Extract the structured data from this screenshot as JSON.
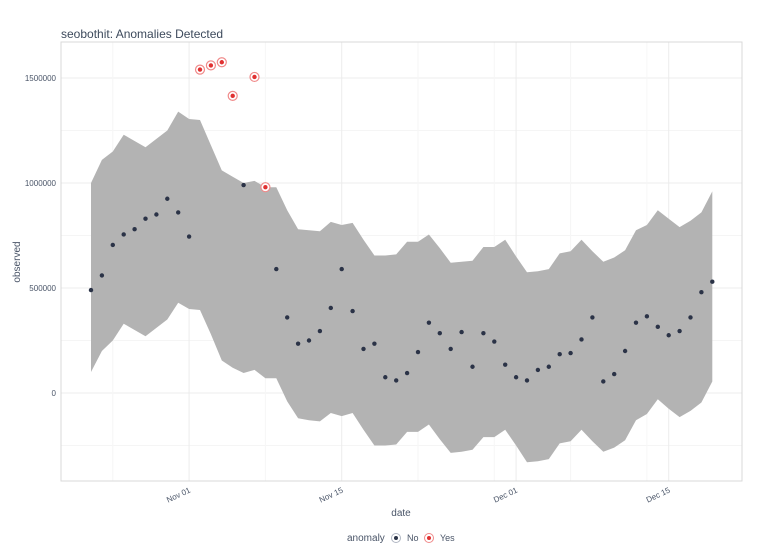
{
  "chart_data": {
    "type": "scatter",
    "title": "seobothit: Anomalies Detected",
    "xlabel": "date",
    "ylabel": "observed",
    "ylim": [
      -420000,
      1660000
    ],
    "yticks": [
      0,
      500000,
      1000000,
      1500000
    ],
    "ytick_labels": [
      "0",
      "500000",
      "1000000",
      "1500000"
    ],
    "xticks": [
      "Nov 01",
      "Nov 15",
      "Dec 01",
      "Dec 15"
    ],
    "grid": true,
    "legend": {
      "title": "anomaly",
      "placement": "bottom",
      "entries": [
        "No",
        "Yes"
      ]
    },
    "colors": {
      "normal": "#2b3347",
      "anomaly": "#e03131",
      "band": "#b3b3b3"
    },
    "dates": [
      "Oct 23",
      "Oct 24",
      "Oct 25",
      "Oct 26",
      "Oct 27",
      "Oct 28",
      "Oct 29",
      "Oct 30",
      "Oct 31",
      "Nov 01",
      "Nov 02",
      "Nov 03",
      "Nov 04",
      "Nov 05",
      "Nov 06",
      "Nov 07",
      "Nov 08",
      "Nov 09",
      "Nov 10",
      "Nov 11",
      "Nov 12",
      "Nov 13",
      "Nov 14",
      "Nov 15",
      "Nov 16",
      "Nov 17",
      "Nov 18",
      "Nov 19",
      "Nov 20",
      "Nov 21",
      "Nov 22",
      "Nov 23",
      "Nov 24",
      "Nov 25",
      "Nov 26",
      "Nov 27",
      "Nov 28",
      "Nov 29",
      "Nov 30",
      "Dec 01",
      "Dec 02",
      "Dec 03",
      "Dec 04",
      "Dec 05",
      "Dec 06",
      "Dec 07",
      "Dec 08",
      "Dec 09",
      "Dec 10",
      "Dec 11",
      "Dec 12",
      "Dec 13",
      "Dec 14",
      "Dec 15",
      "Dec 16",
      "Dec 17",
      "Dec 18",
      "Dec 19"
    ],
    "observed": [
      490000,
      560000,
      705000,
      755000,
      780000,
      830000,
      850000,
      925000,
      860000,
      745000,
      1540000,
      1560000,
      1575000,
      1415000,
      990000,
      1505000,
      980000,
      590000,
      360000,
      235000,
      250000,
      295000,
      405000,
      590000,
      390000,
      210000,
      235000,
      75000,
      60000,
      95000,
      195000,
      335000,
      285000,
      210000,
      290000,
      125000,
      285000,
      245000,
      135000,
      75000,
      60000,
      110000,
      125000,
      185000,
      190000,
      255000,
      360000,
      55000,
      90000,
      200000,
      335000,
      365000,
      315000,
      275000,
      295000,
      360000,
      480000,
      530000
    ],
    "anomaly": [
      "No",
      "No",
      "No",
      "No",
      "No",
      "No",
      "No",
      "No",
      "No",
      "No",
      "Yes",
      "Yes",
      "Yes",
      "Yes",
      "No",
      "Yes",
      "Yes",
      "No",
      "No",
      "No",
      "No",
      "No",
      "No",
      "No",
      "No",
      "No",
      "No",
      "No",
      "No",
      "No",
      "No",
      "No",
      "No",
      "No",
      "No",
      "No",
      "No",
      "No",
      "No",
      "No",
      "No",
      "No",
      "No",
      "No",
      "No",
      "No",
      "No",
      "No",
      "No",
      "No",
      "No",
      "No",
      "No",
      "No",
      "No",
      "No",
      "No",
      "No"
    ],
    "upper": [
      1000000,
      1110000,
      1150000,
      1230000,
      1200000,
      1170000,
      1210000,
      1250000,
      1340000,
      1305000,
      1300000,
      1180000,
      1060000,
      1030000,
      1000000,
      1010000,
      980000,
      980000,
      870000,
      780000,
      775000,
      770000,
      815000,
      800000,
      810000,
      730000,
      655000,
      655000,
      660000,
      720000,
      720000,
      755000,
      690000,
      620000,
      625000,
      630000,
      695000,
      695000,
      730000,
      650000,
      575000,
      580000,
      590000,
      665000,
      675000,
      730000,
      675000,
      625000,
      645000,
      680000,
      775000,
      800000,
      870000,
      830000,
      790000,
      820000,
      860000,
      960000
    ],
    "lower": [
      100000,
      200000,
      250000,
      330000,
      300000,
      270000,
      310000,
      350000,
      430000,
      400000,
      395000,
      280000,
      155000,
      120000,
      95000,
      110000,
      70000,
      70000,
      -40000,
      -120000,
      -130000,
      -135000,
      -95000,
      -110000,
      -95000,
      -175000,
      -250000,
      -250000,
      -245000,
      -185000,
      -185000,
      -150000,
      -220000,
      -285000,
      -280000,
      -270000,
      -210000,
      -210000,
      -175000,
      -250000,
      -330000,
      -325000,
      -315000,
      -240000,
      -230000,
      -175000,
      -230000,
      -280000,
      -260000,
      -225000,
      -130000,
      -100000,
      -30000,
      -75000,
      -115000,
      -85000,
      -45000,
      55000
    ]
  }
}
